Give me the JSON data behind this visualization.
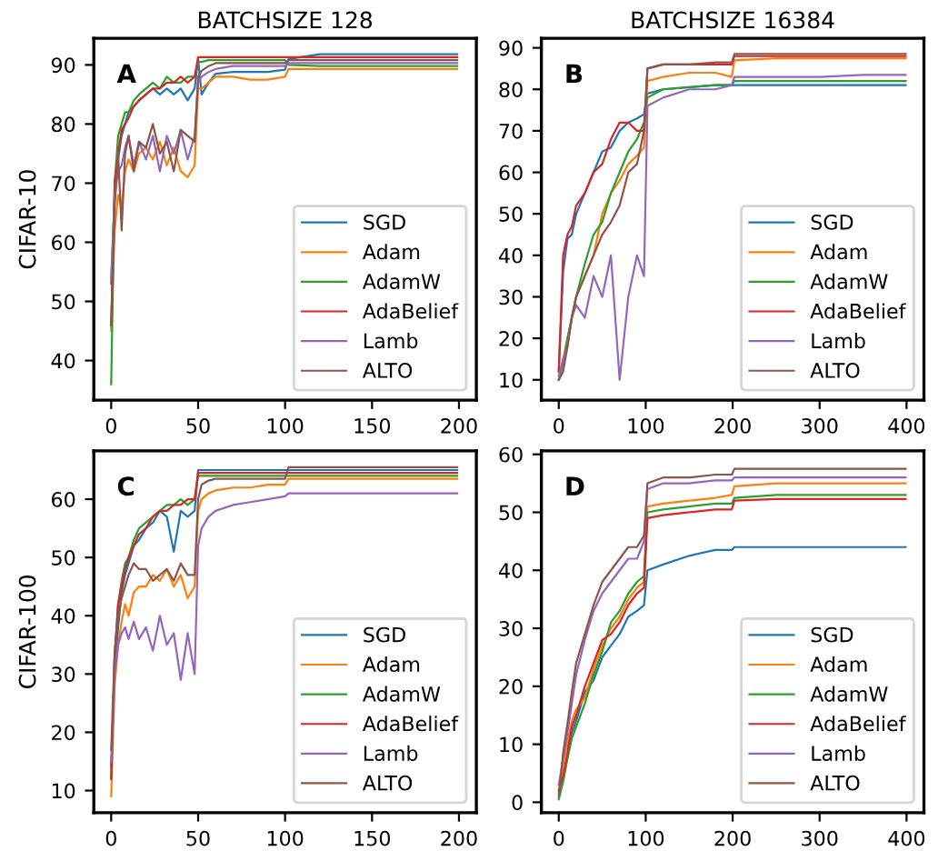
{
  "chart_data": [
    {
      "type": "line",
      "title": "BATCHSIZE 128",
      "ylabel": "CIFAR-10",
      "annotations": [
        "A"
      ],
      "legend": "lower right",
      "grid": false,
      "x": [
        0,
        2,
        4,
        6,
        8,
        10,
        13,
        16,
        20,
        24,
        28,
        32,
        36,
        40,
        44,
        48,
        50,
        52,
        56,
        60,
        70,
        80,
        90,
        100,
        102,
        120,
        150,
        199
      ],
      "xlim": [
        -10,
        210
      ],
      "ylim": [
        33.3,
        94.5
      ],
      "xticks": [
        0,
        50,
        100,
        150,
        200
      ],
      "yticks": [
        40,
        50,
        60,
        70,
        80,
        90
      ],
      "series": [
        {
          "name": "SGD",
          "color": "#1f77b4",
          "values": [
            53,
            68,
            74,
            78,
            80,
            82,
            83,
            84,
            85,
            86,
            85,
            86,
            85,
            86,
            84,
            86,
            91,
            85,
            87,
            88.5,
            88.8,
            88.8,
            88.8,
            89.2,
            91,
            91.8,
            91.8,
            91.8
          ]
        },
        {
          "name": "Adam",
          "color": "#ff7f0e",
          "values": [
            45,
            62,
            68,
            66,
            72,
            74,
            72,
            75,
            76,
            74,
            77,
            73,
            76,
            72,
            71,
            73,
            86,
            86,
            87,
            88,
            88,
            87.5,
            87.5,
            88,
            89.3,
            89.3,
            89.3,
            89.3
          ]
        },
        {
          "name": "AdamW",
          "color": "#2ca02c",
          "values": [
            36,
            70,
            78,
            80,
            82,
            82,
            84,
            85,
            86,
            87,
            86,
            88,
            87,
            87,
            88,
            88,
            90.5,
            90.5,
            90.8,
            90.8,
            90.8,
            90.8,
            90.8,
            90.8,
            90,
            89.8,
            89.8,
            89.8
          ]
        },
        {
          "name": "AdaBelief",
          "color": "#d62728",
          "values": [
            46,
            70,
            75,
            79,
            80,
            81,
            83,
            84,
            85,
            86,
            86,
            87,
            87,
            88,
            87,
            88,
            91.3,
            91.3,
            91.3,
            91.3,
            91.3,
            91.3,
            91.3,
            91.3,
            91.3,
            91.3,
            91.3,
            91.3
          ]
        },
        {
          "name": "Lamb",
          "color": "#9467bd",
          "values": [
            54,
            68,
            72,
            73,
            76,
            78,
            73,
            77,
            74,
            78,
            72,
            78,
            75,
            79,
            74,
            78,
            87,
            88,
            88.8,
            89.3,
            89.8,
            89.8,
            89.8,
            89.8,
            90.3,
            90.3,
            90.3,
            90.3
          ]
        },
        {
          "name": "ALTO",
          "color": "#8c564b",
          "values": [
            46,
            66,
            75,
            62,
            75,
            78,
            72,
            77,
            76,
            80,
            75,
            77,
            72,
            79,
            78,
            77,
            88,
            89,
            89.8,
            90.3,
            90.3,
            90.3,
            90.3,
            90.3,
            90.8,
            90.8,
            90.8,
            90.8
          ]
        }
      ]
    },
    {
      "type": "line",
      "title": "BATCHSIZE 16384",
      "annotations": [
        "B"
      ],
      "legend": "lower right",
      "grid": false,
      "x": [
        0,
        5,
        10,
        15,
        20,
        30,
        40,
        50,
        60,
        70,
        80,
        90,
        98,
        102,
        120,
        150,
        180,
        199,
        202,
        250,
        300,
        350,
        399
      ],
      "xlim": [
        -20,
        420
      ],
      "ylim": [
        5.1,
        92.3
      ],
      "xticks": [
        0,
        100,
        200,
        300,
        400
      ],
      "yticks": [
        10,
        20,
        30,
        40,
        50,
        60,
        70,
        80,
        90
      ],
      "series": [
        {
          "name": "SGD",
          "color": "#1f77b4",
          "values": [
            12,
            36,
            44,
            45,
            50,
            55,
            60,
            65,
            66,
            70,
            72,
            73,
            74,
            79,
            80,
            80.5,
            81,
            81,
            81,
            81,
            81,
            81,
            81
          ]
        },
        {
          "name": "Adam",
          "color": "#ff7f0e",
          "values": [
            10,
            15,
            20,
            25,
            30,
            35,
            40,
            50,
            55,
            58,
            62,
            64,
            66,
            82,
            83,
            84,
            84,
            83,
            87,
            87.5,
            87.5,
            87.5,
            87.5
          ]
        },
        {
          "name": "AdamW",
          "color": "#2ca02c",
          "values": [
            10,
            14,
            20,
            25,
            30,
            38,
            45,
            48,
            55,
            60,
            65,
            68,
            72,
            78,
            80,
            80.5,
            81,
            81,
            82,
            82,
            82,
            82,
            82
          ]
        },
        {
          "name": "AdaBelief",
          "color": "#d62728",
          "values": [
            12,
            40,
            45,
            47,
            52,
            55,
            60,
            62,
            68,
            72,
            72,
            70,
            70,
            85,
            86,
            86,
            86,
            86,
            88,
            88,
            88,
            88,
            88
          ]
        },
        {
          "name": "Lamb",
          "color": "#9467bd",
          "values": [
            11,
            15,
            18,
            25,
            28,
            25,
            35,
            30,
            40,
            10,
            30,
            40,
            35,
            76,
            78,
            80,
            80,
            81,
            83,
            83,
            83,
            83.5,
            83.5
          ]
        },
        {
          "name": "ALTO",
          "color": "#8c564b",
          "values": [
            10,
            12,
            18,
            25,
            30,
            35,
            40,
            45,
            48,
            52,
            60,
            62,
            70,
            85,
            86,
            86,
            86.5,
            86.5,
            88.5,
            88.5,
            88.5,
            88.5,
            88.5
          ]
        }
      ]
    },
    {
      "type": "line",
      "ylabel": "CIFAR-100",
      "annotations": [
        "C"
      ],
      "legend": "lower right",
      "grid": false,
      "x": [
        0,
        2,
        4,
        6,
        8,
        10,
        13,
        16,
        20,
        24,
        28,
        32,
        36,
        40,
        44,
        48,
        50,
        52,
        56,
        60,
        70,
        80,
        90,
        100,
        102,
        120,
        150,
        199
      ],
      "xlim": [
        -10,
        210
      ],
      "ylim": [
        6.2,
        68.3
      ],
      "xticks": [
        0,
        50,
        100,
        150,
        200
      ],
      "yticks": [
        10,
        20,
        30,
        40,
        50,
        60
      ],
      "series": [
        {
          "name": "SGD",
          "color": "#1f77b4",
          "values": [
            14,
            30,
            38,
            44,
            47,
            49,
            52,
            53,
            55,
            56,
            58,
            57,
            51,
            58,
            57,
            58,
            65,
            65,
            65,
            65,
            65,
            65,
            65,
            65,
            65,
            65,
            65,
            65
          ]
        },
        {
          "name": "Adam",
          "color": "#ff7f0e",
          "values": [
            9,
            28,
            35,
            39,
            42,
            40,
            44,
            45,
            45,
            47,
            46,
            48,
            45,
            47,
            43,
            45,
            58,
            60,
            61,
            61.5,
            62,
            62,
            62.5,
            62.5,
            63.5,
            63.5,
            63.5,
            63.5
          ]
        },
        {
          "name": "AdamW",
          "color": "#2ca02c",
          "values": [
            12,
            33,
            42,
            46,
            49,
            50,
            53,
            55,
            56,
            57,
            58,
            59,
            59,
            60,
            59,
            60,
            64,
            64,
            64,
            64,
            64,
            64,
            64,
            64,
            64,
            64,
            64,
            64
          ]
        },
        {
          "name": "AdaBelief",
          "color": "#d62728",
          "values": [
            12,
            33,
            42,
            45,
            48,
            50,
            52,
            54,
            55,
            57,
            58,
            58,
            59,
            59,
            60,
            60,
            64.5,
            64.5,
            64.5,
            64.5,
            64.5,
            64.5,
            64.5,
            64.5,
            64.5,
            64.5,
            64.5,
            64.5
          ]
        },
        {
          "name": "Lamb",
          "color": "#9467bd",
          "values": [
            15,
            30,
            35,
            37,
            38,
            36,
            39,
            36,
            38,
            34,
            40,
            35,
            37,
            29,
            37,
            30,
            52,
            55,
            57,
            58,
            59,
            59.5,
            60,
            60.5,
            61,
            61,
            61,
            61
          ]
        },
        {
          "name": "ALTO",
          "color": "#8c564b",
          "values": [
            17,
            34,
            40,
            43,
            45,
            47,
            49,
            48,
            48,
            46,
            47,
            48,
            46,
            49,
            47,
            47,
            60,
            62.5,
            63.2,
            63.5,
            63.5,
            63.5,
            63.5,
            63.5,
            65.5,
            65.5,
            65.5,
            65.5
          ]
        }
      ]
    },
    {
      "type": "line",
      "annotations": [
        "D"
      ],
      "legend": "lower right",
      "grid": false,
      "x": [
        0,
        5,
        10,
        15,
        20,
        30,
        40,
        50,
        60,
        70,
        80,
        90,
        98,
        102,
        120,
        150,
        180,
        199,
        202,
        250,
        300,
        350,
        399
      ],
      "xlim": [
        -20,
        420
      ],
      "ylim": [
        -1.8,
        60.6
      ],
      "xticks": [
        0,
        100,
        200,
        300,
        400
      ],
      "yticks": [
        0,
        10,
        20,
        30,
        40,
        50,
        60
      ],
      "series": [
        {
          "name": "SGD",
          "color": "#1f77b4",
          "values": [
            null,
            null,
            9.5,
            12,
            14,
            19,
            21,
            25,
            27,
            29,
            32,
            33,
            34,
            40,
            41,
            42.5,
            43.5,
            43.5,
            44,
            44,
            44,
            44,
            44
          ]
        },
        {
          "name": "Adam",
          "color": "#ff7f0e",
          "values": [
            1.5,
            6.5,
            10.5,
            14,
            16,
            18,
            23,
            27,
            30,
            32,
            35,
            37,
            38,
            51,
            51.5,
            52,
            52.5,
            53,
            54.5,
            55,
            55,
            55,
            55
          ]
        },
        {
          "name": "AdamW",
          "color": "#2ca02c",
          "values": [
            0.5,
            3.5,
            7.5,
            11,
            13,
            17,
            22,
            26,
            31,
            33,
            36,
            38,
            39,
            50,
            50.5,
            51,
            51.5,
            51.5,
            52.5,
            53,
            53,
            53,
            53
          ]
        },
        {
          "name": "AdaBelief",
          "color": "#d62728",
          "values": [
            2,
            4.5,
            8.5,
            13,
            15,
            20,
            24,
            28,
            29,
            31,
            34,
            36,
            37,
            49,
            49.5,
            50,
            50.5,
            50.5,
            52,
            52.3,
            52.3,
            52.3,
            52.3
          ]
        },
        {
          "name": "Lamb",
          "color": "#9467bd",
          "values": [
            3,
            7.5,
            12,
            17,
            22,
            28,
            33,
            36,
            38,
            40,
            42,
            42,
            45,
            54,
            55,
            55,
            55.5,
            55.5,
            56,
            56,
            56,
            56,
            56
          ]
        },
        {
          "name": "ALTO",
          "color": "#8c564b",
          "values": [
            1,
            8.5,
            13.5,
            19,
            24,
            29,
            34,
            38,
            40,
            42,
            44,
            44,
            46,
            55,
            56,
            56,
            56.5,
            56.5,
            57.5,
            57.5,
            57.5,
            57.5,
            57.5
          ]
        }
      ]
    }
  ]
}
